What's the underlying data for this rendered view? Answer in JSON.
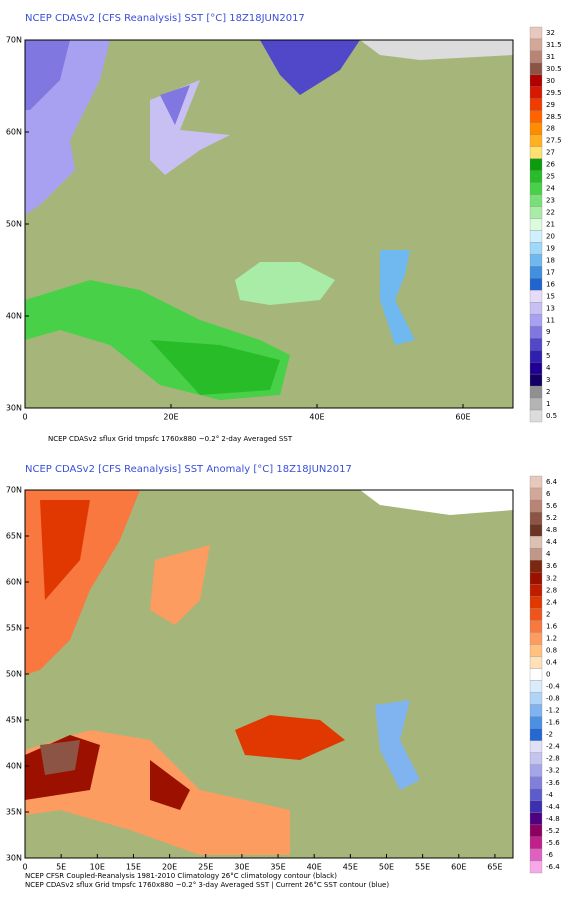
{
  "panels": [
    {
      "title": "NCEP CDASv2 [CFS Reanalysis] SST [°C] 18Z18JUN2017",
      "x_labels": [
        "0",
        "20E",
        "40E",
        "60E"
      ],
      "y_labels": [
        "70N",
        "60N",
        "50N",
        "40N",
        "30N"
      ],
      "footer": [
        "NCEP CDASv2 sflux Grid tmpsfc 1760x880 ~0.2°     2-day Averaged SST"
      ],
      "colorbar": [
        {
          "label": "32",
          "color": "#e8c8bc"
        },
        {
          "label": "31.5",
          "color": "#d4a898"
        },
        {
          "label": "31",
          "color": "#b88474"
        },
        {
          "label": "30.5",
          "color": "#8c5444"
        },
        {
          "label": "30",
          "color": "#b00000"
        },
        {
          "label": "29.5",
          "color": "#d81800"
        },
        {
          "label": "29",
          "color": "#f03c00"
        },
        {
          "label": "28.5",
          "color": "#ff6400"
        },
        {
          "label": "28",
          "color": "#ff8c00"
        },
        {
          "label": "27.5",
          "color": "#ffb020"
        },
        {
          "label": "27",
          "color": "#ffe070"
        },
        {
          "label": "26",
          "color": "#0c9c0c"
        },
        {
          "label": "25",
          "color": "#28bc28"
        },
        {
          "label": "24",
          "color": "#48d048"
        },
        {
          "label": "23",
          "color": "#78e078"
        },
        {
          "label": "22",
          "color": "#a8eca8"
        },
        {
          "label": "21",
          "color": "#dcfadc"
        },
        {
          "label": "20",
          "color": "#d0f0ff"
        },
        {
          "label": "19",
          "color": "#a0d8fa"
        },
        {
          "label": "18",
          "color": "#70b8f0"
        },
        {
          "label": "17",
          "color": "#4090e0"
        },
        {
          "label": "16",
          "color": "#2064d0"
        },
        {
          "label": "15",
          "color": "#e4dcf8"
        },
        {
          "label": "13",
          "color": "#c8c0f2"
        },
        {
          "label": "11",
          "color": "#a8a0f0"
        },
        {
          "label": "9",
          "color": "#8078e0"
        },
        {
          "label": "7",
          "color": "#5048c8"
        },
        {
          "label": "5",
          "color": "#3020b0"
        },
        {
          "label": "4",
          "color": "#200094"
        },
        {
          "label": "3",
          "color": "#120064"
        },
        {
          "label": "2",
          "color": "#909090"
        },
        {
          "label": "1",
          "color": "#b4b4b4"
        },
        {
          "label": "0.5",
          "color": "#dcdcdc"
        }
      ]
    },
    {
      "title": "NCEP CDASv2 [CFS Reanalysis] SST Anomaly [°C] 18Z18JUN2017",
      "x_labels": [
        "0",
        "5E",
        "10E",
        "15E",
        "20E",
        "25E",
        "30E",
        "35E",
        "40E",
        "45E",
        "50E",
        "55E",
        "60E",
        "65E"
      ],
      "y_labels": [
        "70N",
        "65N",
        "60N",
        "55N",
        "50N",
        "45N",
        "40N",
        "35N",
        "30N"
      ],
      "footer": [
        "NCEP CFSR Coupled-Reanalysis 1981-2010 Climatology     26°C climatology contour (black)",
        "NCEP CDASv2 sflux Grid tmpsfc 1760x880 ~0.2°     3-day Averaged SST | Current 26°C SST contour (blue)"
      ],
      "colorbar": [
        {
          "label": "6.4",
          "color": "#e8c8bc"
        },
        {
          "label": "6",
          "color": "#d4a898"
        },
        {
          "label": "5.6",
          "color": "#b88474"
        },
        {
          "label": "5.2",
          "color": "#8c5444"
        },
        {
          "label": "4.8",
          "color": "#6c3424"
        },
        {
          "label": "4.4",
          "color": "#dcc0b4"
        },
        {
          "label": "4",
          "color": "#c09888"
        },
        {
          "label": "3.6",
          "color": "#7a2810"
        },
        {
          "label": "3.2",
          "color": "#9c1000"
        },
        {
          "label": "2.8",
          "color": "#c01c00"
        },
        {
          "label": "2.4",
          "color": "#e03800"
        },
        {
          "label": "2",
          "color": "#f05418"
        },
        {
          "label": "1.6",
          "color": "#f87840"
        },
        {
          "label": "1.2",
          "color": "#fc9c60"
        },
        {
          "label": "0.8",
          "color": "#ffc080"
        },
        {
          "label": "0.4",
          "color": "#ffe0b8"
        },
        {
          "label": "0",
          "color": "#ffffff"
        },
        {
          "label": "-0.4",
          "color": "#d8ecfc"
        },
        {
          "label": "-0.8",
          "color": "#b0d4f8"
        },
        {
          "label": "-1.2",
          "color": "#80b4f0"
        },
        {
          "label": "-1.6",
          "color": "#4c90e4"
        },
        {
          "label": "-2",
          "color": "#2468d4"
        },
        {
          "label": "-2.4",
          "color": "#e0e0f8"
        },
        {
          "label": "-2.8",
          "color": "#c4c4f0"
        },
        {
          "label": "-3.2",
          "color": "#a4a4e8"
        },
        {
          "label": "-3.6",
          "color": "#8080dc"
        },
        {
          "label": "-4",
          "color": "#5c5ccc"
        },
        {
          "label": "-4.4",
          "color": "#3c30b0"
        },
        {
          "label": "-4.8",
          "color": "#500080"
        },
        {
          "label": "-5.2",
          "color": "#8c0060"
        },
        {
          "label": "-5.6",
          "color": "#c0208c"
        },
        {
          "label": "-6",
          "color": "#e060c0"
        },
        {
          "label": "-6.4",
          "color": "#f8a8e8"
        }
      ]
    }
  ]
}
